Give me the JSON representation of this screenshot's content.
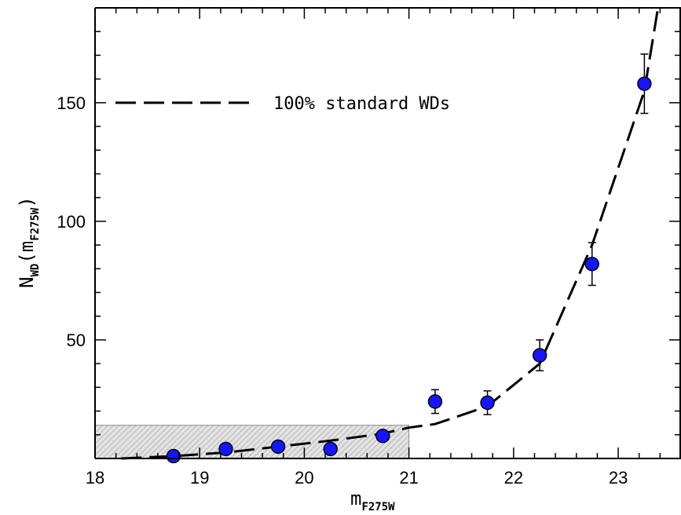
{
  "chart_data": {
    "type": "scatter",
    "title": "",
    "xlabel": {
      "main": "m",
      "sub": "F275W"
    },
    "ylabel": {
      "main": "N",
      "sub1": "WD",
      "paren_open": "(m",
      "sub2": "F275W",
      "paren_close": ")"
    },
    "xlim": [
      18,
      23.6
    ],
    "ylim": [
      0,
      190
    ],
    "x_ticks": [
      18,
      19,
      20,
      21,
      22,
      23
    ],
    "y_ticks": [
      50,
      100,
      150
    ],
    "x_minor_step": 0.2,
    "y_minor_step": 10,
    "grid": false,
    "legend": {
      "placement": "top-left",
      "entries": [
        {
          "label": "100% standard WDs",
          "style": "dashed-line"
        }
      ]
    },
    "shaded_region": {
      "x": [
        18,
        21
      ],
      "y": [
        0,
        14
      ],
      "pattern": "diagonal-hatch",
      "color": "#bdbdbd"
    },
    "points": [
      {
        "x": 18.75,
        "y": 1,
        "err": 0
      },
      {
        "x": 19.25,
        "y": 4,
        "err": 0
      },
      {
        "x": 19.75,
        "y": 5,
        "err": 0
      },
      {
        "x": 20.25,
        "y": 4,
        "err": 0
      },
      {
        "x": 20.75,
        "y": 9.5,
        "err": 2
      },
      {
        "x": 21.25,
        "y": 24,
        "err": 5
      },
      {
        "x": 21.75,
        "y": 23.5,
        "err": 5
      },
      {
        "x": 22.25,
        "y": 43.5,
        "err": 6.5
      },
      {
        "x": 22.75,
        "y": 82,
        "err": 9
      },
      {
        "x": 23.25,
        "y": 158,
        "err": 12.5
      }
    ],
    "model_line": {
      "x": [
        18.25,
        18.75,
        19.25,
        19.75,
        20.25,
        20.75,
        21.0,
        21.25,
        21.75,
        22.25,
        22.75,
        23.25,
        23.38
      ],
      "y": [
        0,
        1,
        2.5,
        5,
        7.5,
        10.5,
        13,
        14.5,
        22,
        40,
        90,
        155,
        190
      ]
    },
    "colors": {
      "marker_fill": "#1515ff",
      "marker_edge": "#000000",
      "line": "#000000"
    }
  }
}
